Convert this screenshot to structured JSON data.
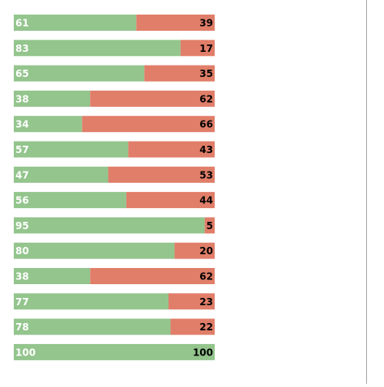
{
  "chart_data": {
    "type": "stacked-bar-horizontal",
    "xlim": [
      0,
      100
    ],
    "series": [
      {
        "color": "#93c58d",
        "values": [
          61,
          83,
          65,
          38,
          34,
          57,
          47,
          56,
          95,
          80,
          38,
          77,
          78,
          100
        ]
      },
      {
        "color": "#e07e69",
        "values": [
          39,
          17,
          35,
          62,
          66,
          43,
          53,
          44,
          5,
          20,
          62,
          23,
          22,
          null
        ]
      }
    ],
    "annotations": [
      100
    ]
  }
}
